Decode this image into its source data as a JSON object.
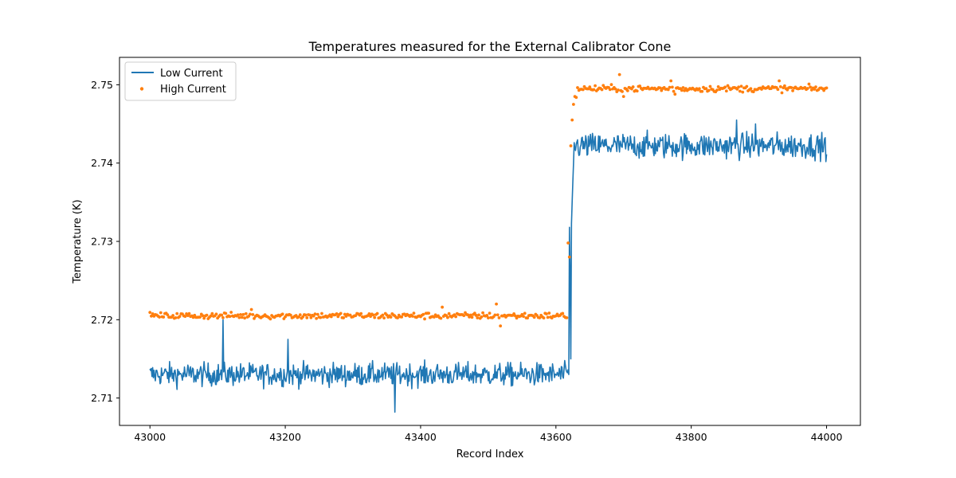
{
  "chart_data": {
    "type": "line",
    "title": "Temperatures measured for the External Calibrator Cone",
    "xlabel": "Record Index",
    "ylabel": "Temperature (K)",
    "xlim": [
      42955,
      44050
    ],
    "ylim": [
      2.7065,
      2.7535
    ],
    "x_ticks": [
      43000,
      43200,
      43400,
      43600,
      43800,
      44000
    ],
    "y_ticks": [
      2.71,
      2.72,
      2.73,
      2.74,
      2.75
    ],
    "x_tick_labels": [
      "43000",
      "43200",
      "43400",
      "43600",
      "43800",
      "44000"
    ],
    "y_tick_labels": [
      "2.71",
      "2.72",
      "2.73",
      "2.74",
      "2.75"
    ],
    "grid": false,
    "legend_position": "top-left",
    "series": [
      {
        "name": "Low Current",
        "kind": "line",
        "color": "#1f77b4",
        "x_range": [
          43000,
          44000
        ],
        "baseline_before": 2.713,
        "baseline_after": 2.7422,
        "step_at": 43619,
        "noise": 0.0008,
        "spikes": [
          {
            "x": 43108,
            "y": 2.72
          },
          {
            "x": 43204,
            "y": 2.7175
          },
          {
            "x": 43362,
            "y": 2.7082
          },
          {
            "x": 43620,
            "y": 2.7318
          },
          {
            "x": 43622,
            "y": 2.715
          },
          {
            "x": 43867,
            "y": 2.7455
          },
          {
            "x": 43895,
            "y": 2.745
          }
        ]
      },
      {
        "name": "High Current",
        "kind": "scatter",
        "color": "#ff7f0e",
        "x_range": [
          43000,
          44000
        ],
        "baseline_before": 2.7205,
        "baseline_after": 2.7495,
        "step_at": 43619,
        "noise": 0.0002,
        "outliers": [
          {
            "x": 43150,
            "y": 2.7213
          },
          {
            "x": 43433,
            "y": 2.7216
          },
          {
            "x": 43513,
            "y": 2.722
          },
          {
            "x": 43518,
            "y": 2.7192
          },
          {
            "x": 43618,
            "y": 2.7298
          },
          {
            "x": 43620,
            "y": 2.728
          },
          {
            "x": 43621,
            "y": 2.7398
          },
          {
            "x": 43622,
            "y": 2.7422
          },
          {
            "x": 43624,
            "y": 2.7455
          },
          {
            "x": 43626,
            "y": 2.7475
          },
          {
            "x": 43628,
            "y": 2.7485
          },
          {
            "x": 43695,
            "y": 2.7513
          },
          {
            "x": 43700,
            "y": 2.7485
          },
          {
            "x": 43770,
            "y": 2.7505
          },
          {
            "x": 43776,
            "y": 2.7488
          },
          {
            "x": 43930,
            "y": 2.7505
          }
        ]
      }
    ]
  }
}
